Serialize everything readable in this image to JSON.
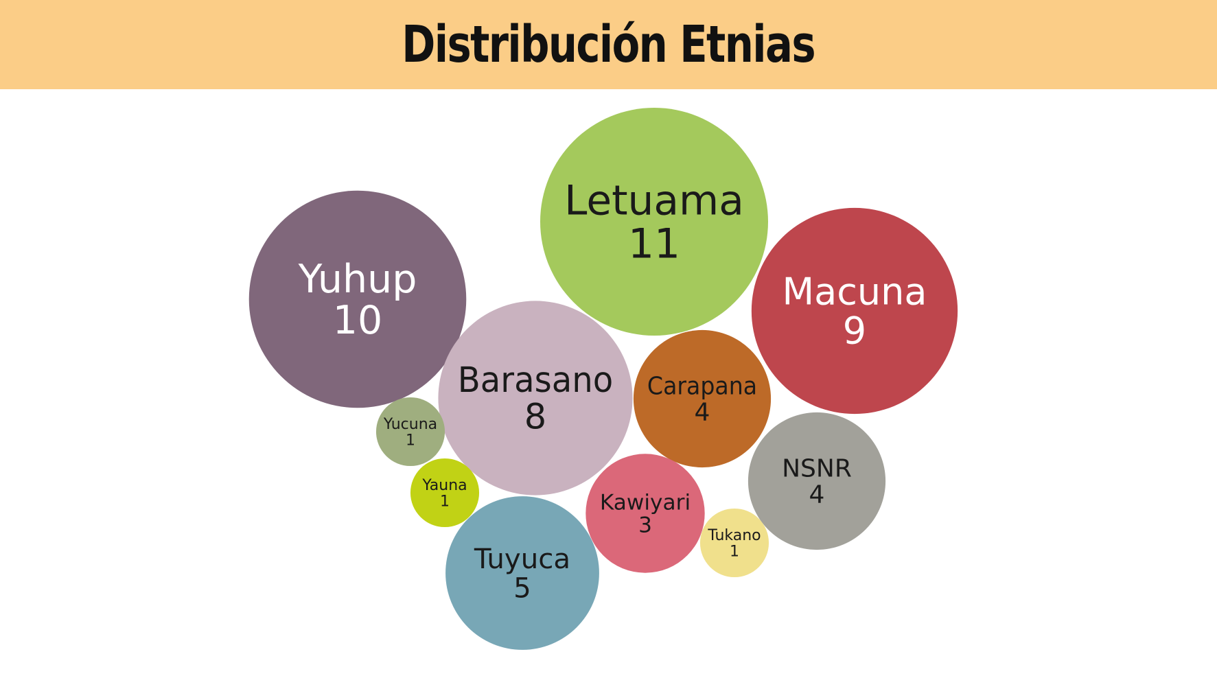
{
  "title": "Distribución Etnias",
  "colors": {
    "header_bg": "#fbcd87"
  },
  "chart_data": {
    "type": "bubble",
    "title": "Distribución Etnias",
    "series": [
      {
        "name": "Letuama",
        "value": 11,
        "color": "#a4c95c",
        "text_color": "#1a1a1a"
      },
      {
        "name": "Yuhup",
        "value": 10,
        "color": "#80677b",
        "text_color": "#ffffff"
      },
      {
        "name": "Macuna",
        "value": 9,
        "color": "#be464d",
        "text_color": "#ffffff"
      },
      {
        "name": "Barasano",
        "value": 8,
        "color": "#c9b2bf",
        "text_color": "#1a1a1a"
      },
      {
        "name": "Tuyuca",
        "value": 5,
        "color": "#78a7b6",
        "text_color": "#1a1a1a"
      },
      {
        "name": "Carapana",
        "value": 4,
        "color": "#bd6a28",
        "text_color": "#1a1a1a"
      },
      {
        "name": "NSNR",
        "value": 4,
        "color": "#a2a19a",
        "text_color": "#1a1a1a"
      },
      {
        "name": "Kawiyari",
        "value": 3,
        "color": "#db6879",
        "text_color": "#1a1a1a"
      },
      {
        "name": "Yucuna",
        "value": 1,
        "color": "#9fae7f",
        "text_color": "#1a1a1a"
      },
      {
        "name": "Yauna",
        "value": 1,
        "color": "#c1d215",
        "text_color": "#1a1a1a"
      },
      {
        "name": "Tukano",
        "value": 1,
        "color": "#f0e08c",
        "text_color": "#1a1a1a"
      }
    ]
  }
}
